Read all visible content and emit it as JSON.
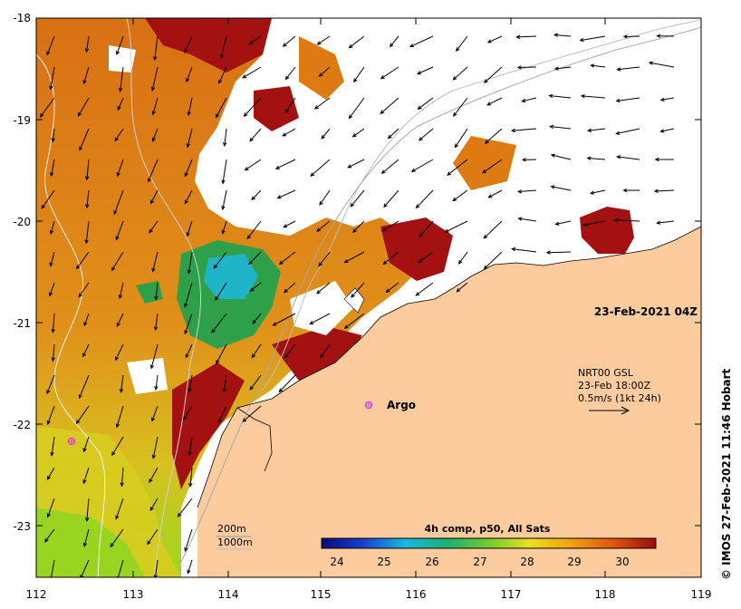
{
  "map": {
    "x_ticks": [
      "112",
      "113",
      "114",
      "115",
      "116",
      "117",
      "118",
      "119"
    ],
    "y_ticks": [
      "-18",
      "-19",
      "-20",
      "-21",
      "-22",
      "-23"
    ],
    "timestamp": "23-Feb-2021 04Z",
    "current_info": {
      "line1": "NRT00 GSL",
      "line2": "23-Feb 18:00Z",
      "line3": "0.5m/s (1kt 24h)"
    },
    "argo_label": "Argo",
    "isobaths": {
      "line1": "200m",
      "line2": "1000m"
    },
    "colorbar": {
      "title": "4h comp, p50, All Sats",
      "ticks": [
        "24",
        "25",
        "26",
        "27",
        "28",
        "29",
        "30"
      ]
    },
    "credit": "© IMOS 27-Feb-2021 11:46 Hobart",
    "colors": {
      "land": "#fccc9e",
      "warm": "#a41111",
      "orange": "#de7a12",
      "yellow": "#e9b81a",
      "green": "#2fa04a",
      "cyan": "#20b4c8",
      "argo": "#e040e0"
    }
  }
}
